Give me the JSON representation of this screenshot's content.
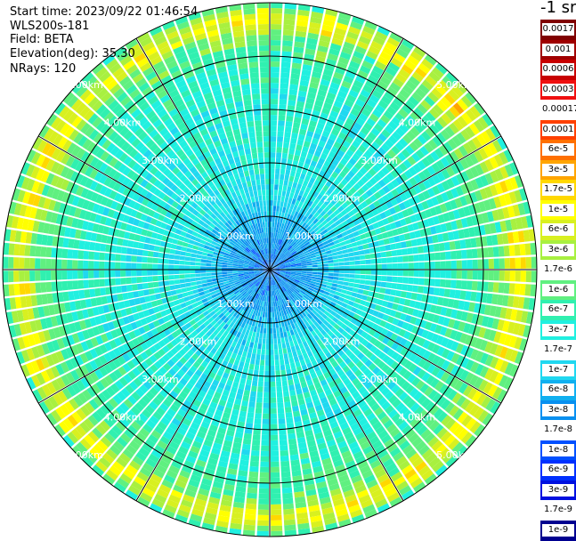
{
  "info": {
    "start_time": "Start time: 2023/09/22 01:46:54",
    "instrument": "WLS200s-181",
    "field": "Field: BETA",
    "elevation": "Elevation(deg): 35.30",
    "nrays": "NRays: 120"
  },
  "units": "-1 sr",
  "chart_data": {
    "type": "heatmap",
    "projection": "polar-ppi",
    "field": "BETA",
    "n_rays": 120,
    "max_range_km": 5.0,
    "range_rings_km": [
      1,
      2,
      3,
      4,
      5
    ],
    "ring_labels": [
      "1.00km",
      "2.00km",
      "3.00km",
      "4.00km",
      "5.00km"
    ],
    "spokes_deg": [
      0,
      30,
      60,
      90,
      120,
      150,
      180,
      210,
      240,
      270,
      300,
      330
    ],
    "radial_profile": {
      "range_km": [
        0,
        0.5,
        1.0,
        1.5,
        2.0,
        2.5,
        3.0,
        3.5,
        4.0,
        4.4,
        4.6,
        4.8,
        5.0
      ],
      "log10_beta": [
        -7.8,
        -7.6,
        -7.3,
        -6.9,
        -6.8,
        -6.75,
        -6.7,
        -6.6,
        -6.4,
        -6.1,
        -5.3,
        -5.6,
        -6.5
      ]
    },
    "colorbar": {
      "levels": [
        {
          "label": "0.0017",
          "color": "#800000",
          "text_color": "#000000"
        },
        {
          "label": "0.001",
          "color": "#a00000",
          "text_color": "#000000"
        },
        {
          "label": "0.0006",
          "color": "#c80000",
          "text_color": "#000000"
        },
        {
          "label": "0.0003",
          "color": "#f01010",
          "text_color": "#000000"
        },
        {
          "label": "0.00017",
          "color": "#ffffff",
          "text_color": "#000000"
        },
        {
          "label": "0.0001",
          "color": "#ff4000",
          "text_color": "#000000"
        },
        {
          "label": "6e-5",
          "color": "#ff7000",
          "text_color": "#000000"
        },
        {
          "label": "3e-5",
          "color": "#ffa500",
          "text_color": "#000000"
        },
        {
          "label": "1.7e-5",
          "color": "#ffd800",
          "text_color": "#000000"
        },
        {
          "label": "1e-5",
          "color": "#ffff00",
          "text_color": "#000000"
        },
        {
          "label": "6e-6",
          "color": "#d8f020",
          "text_color": "#000000"
        },
        {
          "label": "3e-6",
          "color": "#a8f040",
          "text_color": "#000000"
        },
        {
          "label": "1.7e-6",
          "color": "#ffffff",
          "text_color": "#000000"
        },
        {
          "label": "1e-6",
          "color": "#60f080",
          "text_color": "#ffffff"
        },
        {
          "label": "6e-7",
          "color": "#30f0b0",
          "text_color": "#ffffff"
        },
        {
          "label": "3e-7",
          "color": "#20f0e0",
          "text_color": "#000000"
        },
        {
          "label": "1.7e-7",
          "color": "#ffffff",
          "text_color": "#000000"
        },
        {
          "label": "1e-7",
          "color": "#20d8f0",
          "text_color": "#ffffff"
        },
        {
          "label": "6e-8",
          "color": "#10b0f0",
          "text_color": "#ffffff"
        },
        {
          "label": "3e-8",
          "color": "#0890f0",
          "text_color": "#ffffff"
        },
        {
          "label": "1.7e-8",
          "color": "#ffffff",
          "text_color": "#000000"
        },
        {
          "label": "1e-8",
          "color": "#0050ff",
          "text_color": "#ffffff"
        },
        {
          "label": "6e-9",
          "color": "#0030ff",
          "text_color": "#ffffff"
        },
        {
          "label": "3e-9",
          "color": "#0010e0",
          "text_color": "#ffffff"
        },
        {
          "label": "1.7e-9",
          "color": "#ffffff",
          "text_color": "#000000"
        },
        {
          "label": "1e-9",
          "color": "#000090",
          "text_color": "#ffffff"
        }
      ]
    }
  }
}
